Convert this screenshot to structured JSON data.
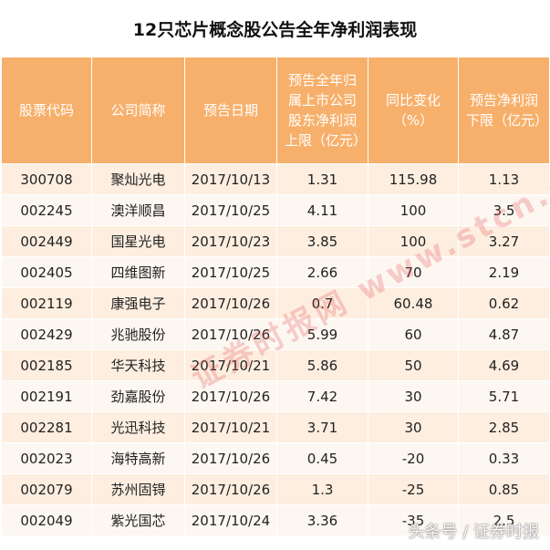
{
  "title": "12只芯片概念股公告全年净利润表现",
  "headers": [
    "股票代码",
    "公司简称",
    "预告日期",
    "预告全年归属上市公司股东净利润上限（亿元）",
    "同比变化（%）",
    "预告净利润下限（亿元）"
  ],
  "rows": [
    [
      "300708",
      "聚灿光电",
      "2017/10/13",
      "1.31",
      "115.98",
      "1.13"
    ],
    [
      "002245",
      "澳洋顺昌",
      "2017/10/25",
      "4.11",
      "100",
      "3.5"
    ],
    [
      "002449",
      "国星光电",
      "2017/10/23",
      "3.85",
      "100",
      "3.27"
    ],
    [
      "002405",
      "四维图新",
      "2017/10/25",
      "2.66",
      "70",
      "2.19"
    ],
    [
      "002119",
      "康强电子",
      "2017/10/26",
      "0.7",
      "60.48",
      "0.62"
    ],
    [
      "002429",
      "兆驰股份",
      "2017/10/26",
      "5.99",
      "60",
      "4.87"
    ],
    [
      "002185",
      "华天科技",
      "2017/10/21",
      "5.86",
      "50",
      "4.69"
    ],
    [
      "002191",
      "劲嘉股份",
      "2017/10/26",
      "7.42",
      "30",
      "5.71"
    ],
    [
      "002281",
      "光迅科技",
      "2017/10/21",
      "3.71",
      "30",
      "2.85"
    ],
    [
      "002023",
      "海特高新",
      "2017/10/26",
      "0.45",
      "-20",
      "0.33"
    ],
    [
      "002079",
      "苏州固锝",
      "2017/10/26",
      "1.3",
      "-25",
      "0.85"
    ],
    [
      "002049",
      "紫光国芯",
      "2017/10/24",
      "3.36",
      "-35",
      "2.5"
    ]
  ],
  "watermark": "证券时报网 www.stcn.com",
  "footer_watermark": "头条号 / 证券时报"
}
